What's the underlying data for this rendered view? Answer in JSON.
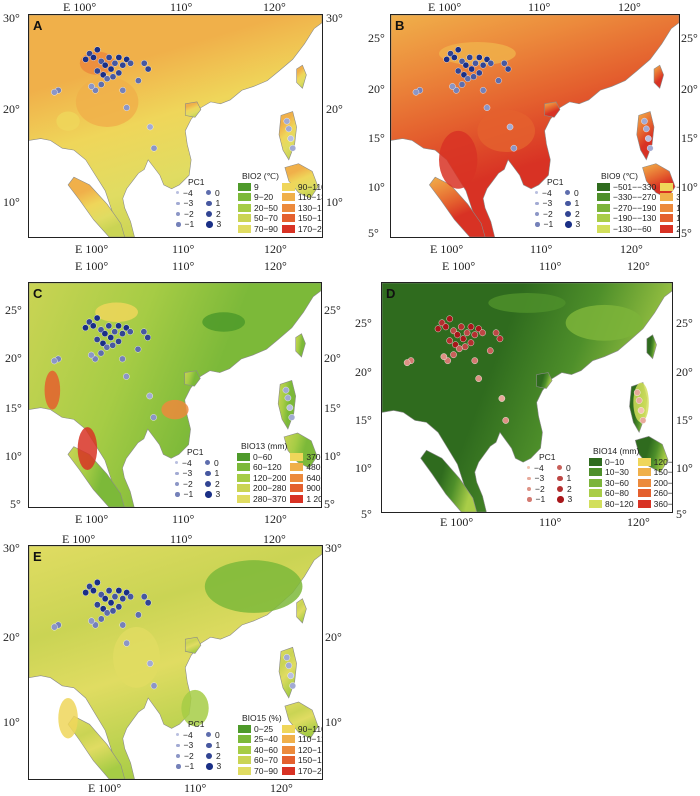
{
  "panels": [
    {
      "id": "A",
      "label": "A",
      "variable": "BIO2 (℃)",
      "x_ticks": [
        "E 100°",
        "110°",
        "120°"
      ],
      "y_ticks_left": [
        "30°",
        "20°",
        "10°"
      ],
      "y_ticks_right": [
        "30°",
        "20°",
        "10°"
      ],
      "pc1_title": "PC1",
      "pc1_values": [
        "−4",
        "−3",
        "−2",
        "−1",
        "0",
        "1",
        "2",
        "3"
      ],
      "legend_classes": [
        "9",
        "9−20",
        "20−50",
        "50−70",
        "70−90",
        "90−110",
        "110−130",
        "130−150",
        "150−170",
        "170−213"
      ],
      "legend_colors": [
        "#4e9a2a",
        "#7cb939",
        "#a6cc45",
        "#cad454",
        "#e0dc62",
        "#efd65a",
        "#f0b04a",
        "#ec8a3c",
        "#e4602e",
        "#d83224"
      ]
    },
    {
      "id": "B",
      "label": "B",
      "variable": "BIO9 (℃)",
      "x_ticks": [
        "E 100°",
        "110°",
        "120°"
      ],
      "y_ticks_left": [
        "25°",
        "20°",
        "15°",
        "10°",
        "5°"
      ],
      "y_ticks_right": [
        "25°",
        "20°",
        "15°",
        "10°",
        "5°"
      ],
      "pc1_title": "PC1",
      "pc1_values": [
        "−4",
        "−3",
        "−2",
        "−1",
        "0",
        "1",
        "2",
        "3"
      ],
      "legend_classes": [
        "−501−−330",
        "−330−−270",
        "−270−−190",
        "−190−−130",
        "−130−−60",
        "−60−30",
        "30−120",
        "120−190",
        "190−250",
        "250−365"
      ],
      "legend_colors": [
        "#2f6b1e",
        "#4e8f2a",
        "#7cb43a",
        "#a9cd48",
        "#d2df5c",
        "#efd65a",
        "#f0b04a",
        "#ec8a3c",
        "#e4602e",
        "#d83224"
      ]
    },
    {
      "id": "C",
      "label": "C",
      "variable": "BIO13 (mm)",
      "x_ticks": [
        "E 100°",
        "110°",
        "120°"
      ],
      "y_ticks_left": [
        "25°",
        "20°",
        "15°",
        "10°",
        "5°"
      ],
      "y_ticks_right": [
        "25°",
        "20°",
        "15°",
        "10°",
        "5°"
      ],
      "pc1_title": "PC1",
      "pc1_values": [
        "−4",
        "−3",
        "−2",
        "−1",
        "0",
        "1",
        "2",
        "3"
      ],
      "legend_classes": [
        "0−60",
        "60−120",
        "120−200",
        "200−280",
        "280−370",
        "370−480",
        "480−640",
        "640−900",
        "900−1 200",
        "1 200−2 500"
      ],
      "legend_colors": [
        "#4e9a2a",
        "#7cb939",
        "#a6cc45",
        "#cad454",
        "#e0dc62",
        "#efd65a",
        "#f0b04a",
        "#ec8a3c",
        "#e4602e",
        "#d83224"
      ]
    },
    {
      "id": "D",
      "label": "D",
      "variable": "BIO14 (mm)",
      "x_ticks": [
        "E 100°",
        "110°",
        "120°"
      ],
      "y_ticks_left": [
        "25°",
        "20°",
        "15°",
        "10°",
        "5°"
      ],
      "y_ticks_right": [
        "25°",
        "20°",
        "15°",
        "10°",
        "5°"
      ],
      "pc1_title": "PC1",
      "pc1_values": [
        "−4",
        "−3",
        "−2",
        "−1",
        "0",
        "1",
        "2",
        "3"
      ],
      "legend_classes": [
        "0−10",
        "10−30",
        "30−60",
        "60−80",
        "80−120",
        "120−150",
        "150−200",
        "200−260",
        "260−360",
        "360−697"
      ],
      "legend_colors": [
        "#2f6b1e",
        "#4e8f2a",
        "#7cb43a",
        "#a9cd48",
        "#d2df5c",
        "#efd65a",
        "#f0b04a",
        "#ec8a3c",
        "#e4602e",
        "#d83224"
      ]
    },
    {
      "id": "E",
      "label": "E",
      "variable": "BIO15 (%)",
      "x_ticks": [
        "E 100°",
        "110°",
        "120°"
      ],
      "y_ticks_left": [
        "30°",
        "20°",
        "10°"
      ],
      "y_ticks_right": [
        "30°",
        "20°",
        "10°"
      ],
      "pc1_title": "PC1",
      "pc1_values": [
        "−4",
        "−3",
        "−2",
        "−1",
        "0",
        "1",
        "2",
        "3"
      ],
      "legend_classes": [
        "0−25",
        "25−40",
        "40−60",
        "60−70",
        "70−90",
        "90−110",
        "110−120",
        "120−150",
        "150−170",
        "170−265"
      ],
      "legend_colors": [
        "#4e9a2a",
        "#7cb939",
        "#a6cc45",
        "#cad454",
        "#e0dc62",
        "#efd65a",
        "#f0b04a",
        "#ec8a3c",
        "#e4602e",
        "#d83224"
      ]
    }
  ],
  "colors": {
    "pc1_blue_dark": "#1a2f86",
    "pc1_blue_light": "#b9bfe0",
    "pc1_red_dark": "#a8161a",
    "pc1_red_light": "#f3c3b0",
    "sea": "#ffffff",
    "coast": "#8a8a8a"
  }
}
